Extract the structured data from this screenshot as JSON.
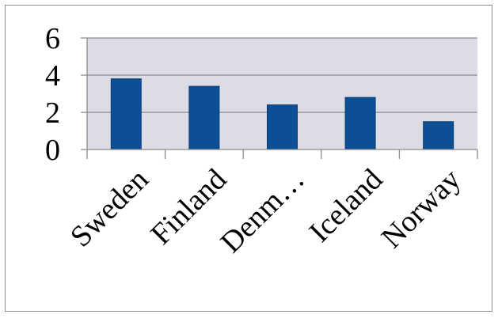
{
  "chart_data": {
    "type": "bar",
    "title": "",
    "xlabel": "",
    "ylabel": "",
    "categories": [
      "Sweden",
      "Finland",
      "Denm…",
      "Iceland",
      "Norway"
    ],
    "values": [
      3.8,
      3.4,
      2.4,
      2.8,
      1.5
    ],
    "ylim": [
      0,
      6
    ],
    "yticks": [
      0,
      2,
      4,
      6
    ],
    "grid": true,
    "legend": "none",
    "colors": {
      "bar": "#0d4f94",
      "bar_edge": "#0a3d73",
      "plot_area": "#dcdce6",
      "gridline": "#8c8c8c",
      "axis": "#8c8c8c"
    }
  }
}
